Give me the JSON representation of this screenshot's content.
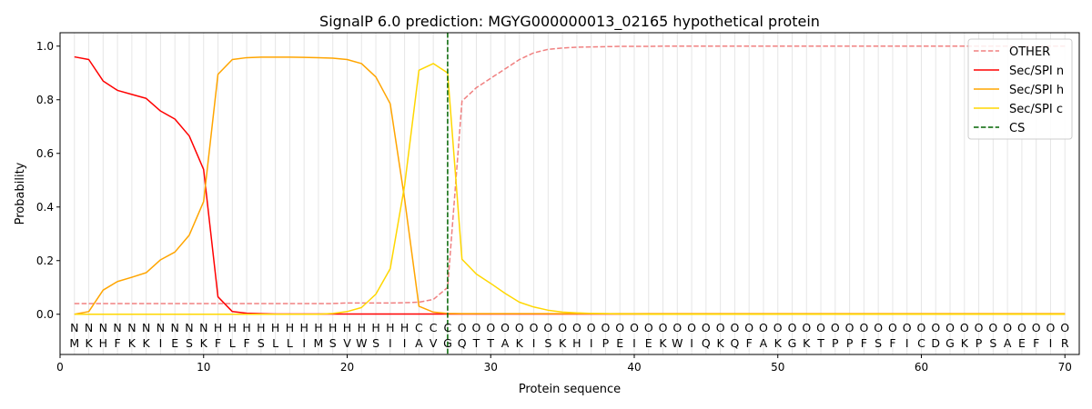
{
  "chart_data": {
    "type": "line",
    "title": "SignalP 6.0 prediction: MGYG000000013_02165 hypothetical protein",
    "xlabel": "Protein sequence",
    "ylabel": "Probability",
    "xlim": [
      0,
      71
    ],
    "ylim": [
      -0.15,
      1.05
    ],
    "x_ticks": [
      0,
      10,
      20,
      30,
      40,
      50,
      60,
      70
    ],
    "y_ticks": [
      0.0,
      0.2,
      0.4,
      0.6,
      0.8,
      1.0
    ],
    "y_tick_labels": [
      "0.0",
      "0.2",
      "0.4",
      "0.6",
      "0.8",
      "1.0"
    ],
    "grid": "vertical lines at each residue",
    "legend_position": "top-right",
    "sequence": [
      "M",
      "K",
      "H",
      "F",
      "K",
      "K",
      "I",
      "E",
      "S",
      "K",
      "F",
      "L",
      "F",
      "S",
      "L",
      "L",
      "I",
      "M",
      "S",
      "V",
      "W",
      "S",
      "I",
      "I",
      "A",
      "V",
      "G",
      "Q",
      "T",
      "T",
      "A",
      "K",
      "I",
      "S",
      "K",
      "H",
      "I",
      "P",
      "E",
      "I",
      "E",
      "K",
      "W",
      "I",
      "Q",
      "K",
      "Q",
      "F",
      "A",
      "K",
      "G",
      "K",
      "T",
      "P",
      "P",
      "F",
      "S",
      "F",
      "I",
      "C",
      "D",
      "G",
      "K",
      "P",
      "S",
      "A",
      "E",
      "F",
      "I",
      "R"
    ],
    "region_labels": [
      "N",
      "N",
      "N",
      "N",
      "N",
      "N",
      "N",
      "N",
      "N",
      "N",
      "H",
      "H",
      "H",
      "H",
      "H",
      "H",
      "H",
      "H",
      "H",
      "H",
      "H",
      "H",
      "H",
      "H",
      "C",
      "C",
      "C",
      "O",
      "O",
      "O",
      "O",
      "O",
      "O",
      "O",
      "O",
      "O",
      "O",
      "O",
      "O",
      "O",
      "O",
      "O",
      "O",
      "O",
      "O",
      "O",
      "O",
      "O",
      "O",
      "O",
      "O",
      "O",
      "O",
      "O",
      "O",
      "O",
      "O",
      "O",
      "O",
      "O",
      "O",
      "O",
      "O",
      "O",
      "O",
      "O",
      "O",
      "O",
      "O",
      "O"
    ],
    "region_colors": {
      "N": "#ff0000",
      "H": "#ffa500",
      "C": "#ffd700",
      "O": "#808080"
    },
    "cleavage_site": 27,
    "series": [
      {
        "name": "OTHER",
        "color": "#f08080",
        "style": "dashed",
        "values": [
          0.04,
          0.04,
          0.04,
          0.04,
          0.04,
          0.04,
          0.04,
          0.04,
          0.04,
          0.04,
          0.04,
          0.04,
          0.04,
          0.04,
          0.04,
          0.04,
          0.04,
          0.04,
          0.04,
          0.042,
          0.042,
          0.042,
          0.042,
          0.043,
          0.045,
          0.055,
          0.1,
          0.795,
          0.845,
          0.88,
          0.915,
          0.95,
          0.975,
          0.988,
          0.993,
          0.996,
          0.997,
          0.998,
          0.999,
          0.999,
          0.999,
          1.0,
          1.0,
          1.0,
          1.0,
          1.0,
          1.0,
          1.0,
          1.0,
          1.0,
          1.0,
          1.0,
          1.0,
          1.0,
          1.0,
          1.0,
          1.0,
          1.0,
          1.0,
          1.0,
          1.0,
          1.0,
          1.0,
          1.0,
          1.0,
          1.0,
          1.0,
          1.0,
          1.0,
          1.0
        ]
      },
      {
        "name": "Sec/SPI n",
        "color": "#ff0000",
        "style": "solid",
        "values": [
          0.96,
          0.95,
          0.87,
          0.835,
          0.82,
          0.805,
          0.758,
          0.728,
          0.665,
          0.54,
          0.065,
          0.01,
          0.004,
          0.002,
          0.001,
          0.001,
          0.001,
          0.001,
          0.001,
          0.001,
          0.001,
          0.001,
          0.001,
          0.001,
          0.001,
          0.001,
          0.001,
          0.001,
          0.001,
          0.001,
          0.001,
          0.001,
          0.001,
          0.001,
          0.001,
          0.001,
          0.001,
          0.001,
          0.001,
          0.001,
          0.001,
          0.001,
          0.001,
          0.001,
          0.001,
          0.001,
          0.001,
          0.001,
          0.001,
          0.001,
          0.001,
          0.001,
          0.001,
          0.001,
          0.001,
          0.001,
          0.001,
          0.001,
          0.001,
          0.001,
          0.001,
          0.001,
          0.001,
          0.001,
          0.001,
          0.001,
          0.001,
          0.001,
          0.001,
          0.001
        ]
      },
      {
        "name": "Sec/SPI h",
        "color": "#ffa500",
        "style": "solid",
        "values": [
          0.0,
          0.01,
          0.09,
          0.122,
          0.138,
          0.155,
          0.203,
          0.232,
          0.295,
          0.42,
          0.895,
          0.95,
          0.957,
          0.959,
          0.959,
          0.959,
          0.958,
          0.957,
          0.955,
          0.95,
          0.935,
          0.885,
          0.785,
          0.43,
          0.03,
          0.008,
          0.003,
          0.002,
          0.002,
          0.002,
          0.002,
          0.002,
          0.002,
          0.002,
          0.002,
          0.002,
          0.002,
          0.002,
          0.002,
          0.002,
          0.002,
          0.002,
          0.002,
          0.002,
          0.002,
          0.002,
          0.002,
          0.002,
          0.002,
          0.002,
          0.002,
          0.002,
          0.002,
          0.002,
          0.002,
          0.002,
          0.002,
          0.002,
          0.002,
          0.002,
          0.002,
          0.002,
          0.002,
          0.002,
          0.002,
          0.002,
          0.002,
          0.002,
          0.002,
          0.002
        ]
      },
      {
        "name": "Sec/SPI c",
        "color": "#ffd700",
        "style": "solid",
        "values": [
          0.0,
          0.0,
          0.0,
          0.0,
          0.0,
          0.0,
          0.0,
          0.0,
          0.0,
          0.0,
          0.0,
          0.0,
          0.0,
          0.0,
          0.0,
          0.0,
          0.0,
          0.0,
          0.003,
          0.01,
          0.025,
          0.075,
          0.17,
          0.48,
          0.91,
          0.935,
          0.9,
          0.205,
          0.15,
          0.115,
          0.078,
          0.045,
          0.027,
          0.015,
          0.008,
          0.005,
          0.003,
          0.002,
          0.001,
          0.001,
          0.0,
          0.0,
          0.0,
          0.0,
          0.0,
          0.0,
          0.0,
          0.0,
          0.0,
          0.0,
          0.0,
          0.0,
          0.0,
          0.0,
          0.0,
          0.0,
          0.0,
          0.0,
          0.0,
          0.0,
          0.0,
          0.0,
          0.0,
          0.0,
          0.0,
          0.0,
          0.0,
          0.0,
          0.0,
          0.0
        ]
      }
    ],
    "legend": [
      {
        "label": "OTHER",
        "color": "#f08080",
        "style": "dashed"
      },
      {
        "label": "Sec/SPI n",
        "color": "#ff0000",
        "style": "solid"
      },
      {
        "label": "Sec/SPI h",
        "color": "#ffa500",
        "style": "solid"
      },
      {
        "label": "Sec/SPI c",
        "color": "#ffd700",
        "style": "solid"
      },
      {
        "label": "CS",
        "color": "#006400",
        "style": "dashed"
      }
    ]
  }
}
